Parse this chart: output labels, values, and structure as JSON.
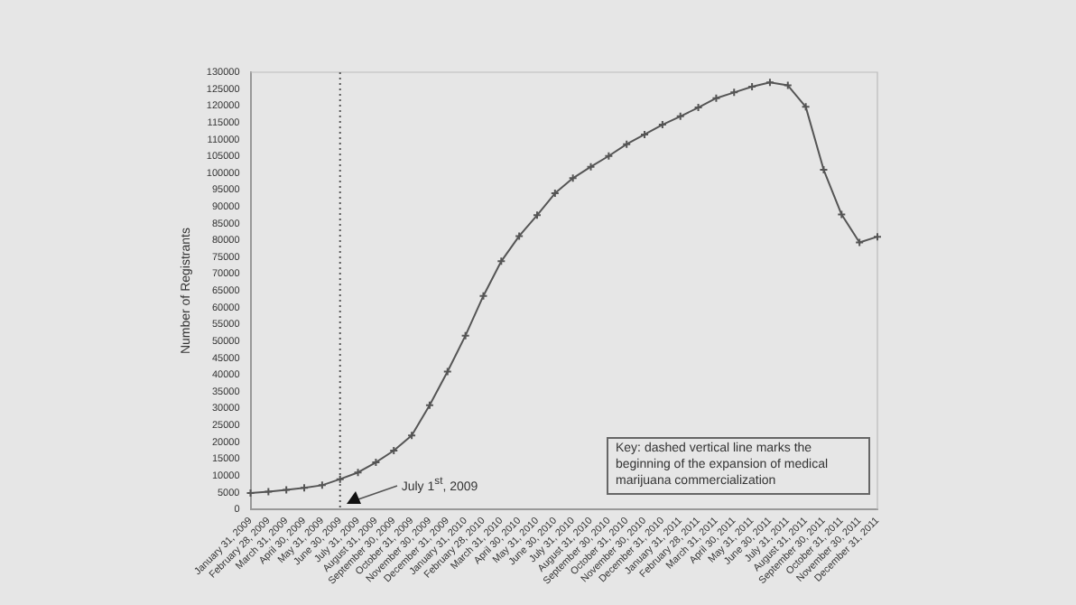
{
  "chart_data": {
    "type": "line",
    "ylabel": "Number of Registrants",
    "categories": [
      "January 31, 2009",
      "February 28, 2009",
      "March 31, 2009",
      "April 30, 2009",
      "May 31, 2009",
      "June 30, 2009",
      "July 31, 2009",
      "August 31, 2009",
      "September 30, 2009",
      "October 31, 2009",
      "November 30, 2009",
      "December 31, 2009",
      "January 31, 2010",
      "February 28, 2010",
      "March 31, 2010",
      "April 30, 2010",
      "May 31, 2010",
      "June 30, 2010",
      "July 31, 2010",
      "August 31, 2010",
      "September 30, 2010",
      "October 31, 2010",
      "November 30, 2010",
      "December 31, 2010",
      "January 31, 2011",
      "February 28, 2011",
      "March 31, 2011",
      "April 30, 2011",
      "May 31, 2011",
      "June 30, 2011",
      "July 31, 2011",
      "August 31, 2011",
      "September 30, 2011",
      "October 31, 2011",
      "November 30, 2011",
      "December 31, 2011"
    ],
    "series": [
      {
        "color": "#555555",
        "values": [
          4900,
          5300,
          5800,
          6400,
          7200,
          9000,
          11000,
          14000,
          17500,
          22000,
          31000,
          41000,
          51700,
          63500,
          73800,
          81300,
          87500,
          94000,
          98500,
          101900,
          105100,
          108600,
          111500,
          114400,
          116900,
          119500,
          122300,
          124000,
          125700,
          127000,
          126100,
          119700,
          101000,
          87700,
          79400,
          81100
        ]
      }
    ],
    "ylim": [
      0,
      130000
    ],
    "yticks": [
      0,
      5000,
      10000,
      15000,
      20000,
      25000,
      30000,
      35000,
      40000,
      45000,
      50000,
      55000,
      60000,
      65000,
      70000,
      75000,
      80000,
      85000,
      90000,
      95000,
      100000,
      105000,
      110000,
      115000,
      120000,
      125000,
      130000
    ],
    "grid": false,
    "legend": false,
    "marker": "cross",
    "line_style": "solid",
    "ref_lines": [
      {
        "axis": "x",
        "value": "June 30, 2009",
        "color": "#555555",
        "line_style": "dotted"
      }
    ],
    "annotations": [
      "July 1$^{st}$, 2009",
      "Key: dashed vertical line marks the beginning of the expansion of medical marijuana commercialization"
    ]
  }
}
